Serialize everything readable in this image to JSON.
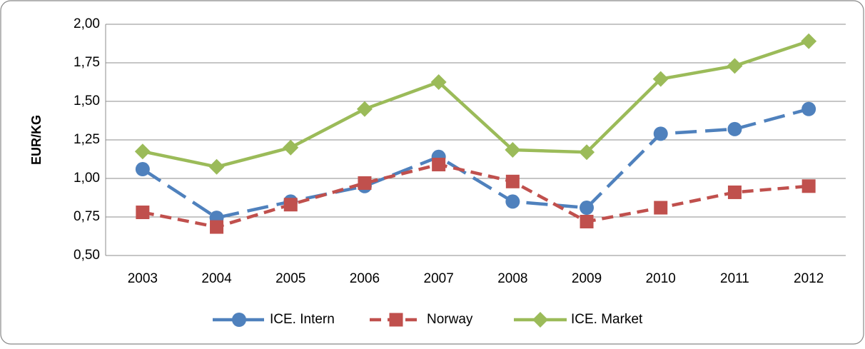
{
  "chart_data": {
    "type": "line",
    "y_label": "EUR/KG",
    "categories": [
      "2003",
      "2004",
      "2005",
      "2006",
      "2007",
      "2008",
      "2009",
      "2010",
      "2011",
      "2012"
    ],
    "series": [
      {
        "name": "ICE. Intern",
        "color": "#4f81bd",
        "marker": "circle",
        "dash": "long",
        "values": [
          1.06,
          0.745,
          0.85,
          0.95,
          1.14,
          0.85,
          0.81,
          1.29,
          1.32,
          1.45
        ]
      },
      {
        "name": "Norway",
        "color": "#c0504d",
        "marker": "square",
        "dash": "dash",
        "values": [
          0.78,
          0.685,
          0.83,
          0.97,
          1.09,
          0.98,
          0.72,
          0.81,
          0.91,
          0.95
        ]
      },
      {
        "name": "ICE. Market",
        "color": "#9bbb59",
        "marker": "diamond",
        "dash": "solid",
        "values": [
          1.175,
          1.075,
          1.2,
          1.45,
          1.625,
          1.185,
          1.17,
          1.645,
          1.73,
          1.89
        ]
      }
    ],
    "ylim": [
      0.5,
      2.0
    ],
    "yticks": [
      {
        "value": 0.5,
        "label": "0,50"
      },
      {
        "value": 0.75,
        "label": "0,75"
      },
      {
        "value": 1.0,
        "label": "1,00"
      },
      {
        "value": 1.25,
        "label": "1,25"
      },
      {
        "value": 1.5,
        "label": "1,50"
      },
      {
        "value": 1.75,
        "label": "1,75"
      },
      {
        "value": 2.0,
        "label": "2,00"
      }
    ],
    "grid": true,
    "legend": "bottom"
  }
}
